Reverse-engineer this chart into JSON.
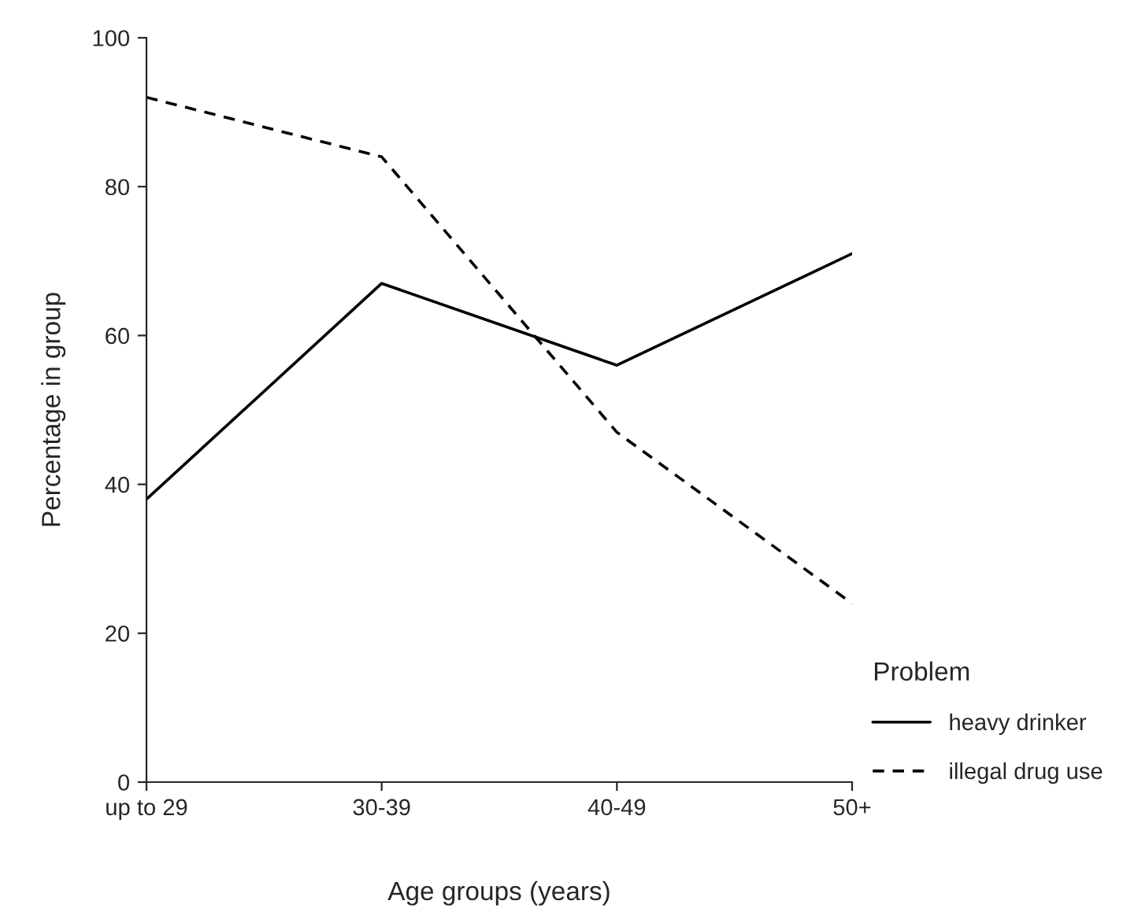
{
  "chart_data": {
    "type": "line",
    "xlabel": "Age groups (years)",
    "ylabel": "Percentage in group",
    "legend_title": "Problem",
    "categories": [
      "up to 29",
      "30-39",
      "40-49",
      "50+"
    ],
    "series": [
      {
        "name": "heavy drinker",
        "color": "#000000",
        "line_style": "solid",
        "values": [
          38,
          67,
          56,
          71
        ]
      },
      {
        "name": "illegal drug use",
        "color": "#000000",
        "line_style": "dashed",
        "values": [
          92,
          84,
          47,
          24
        ]
      }
    ],
    "ylim": [
      0,
      100
    ],
    "yticks": [
      0,
      20,
      40,
      60,
      80,
      100
    ],
    "grid": false,
    "legend": "bottom right",
    "marker": "none"
  }
}
